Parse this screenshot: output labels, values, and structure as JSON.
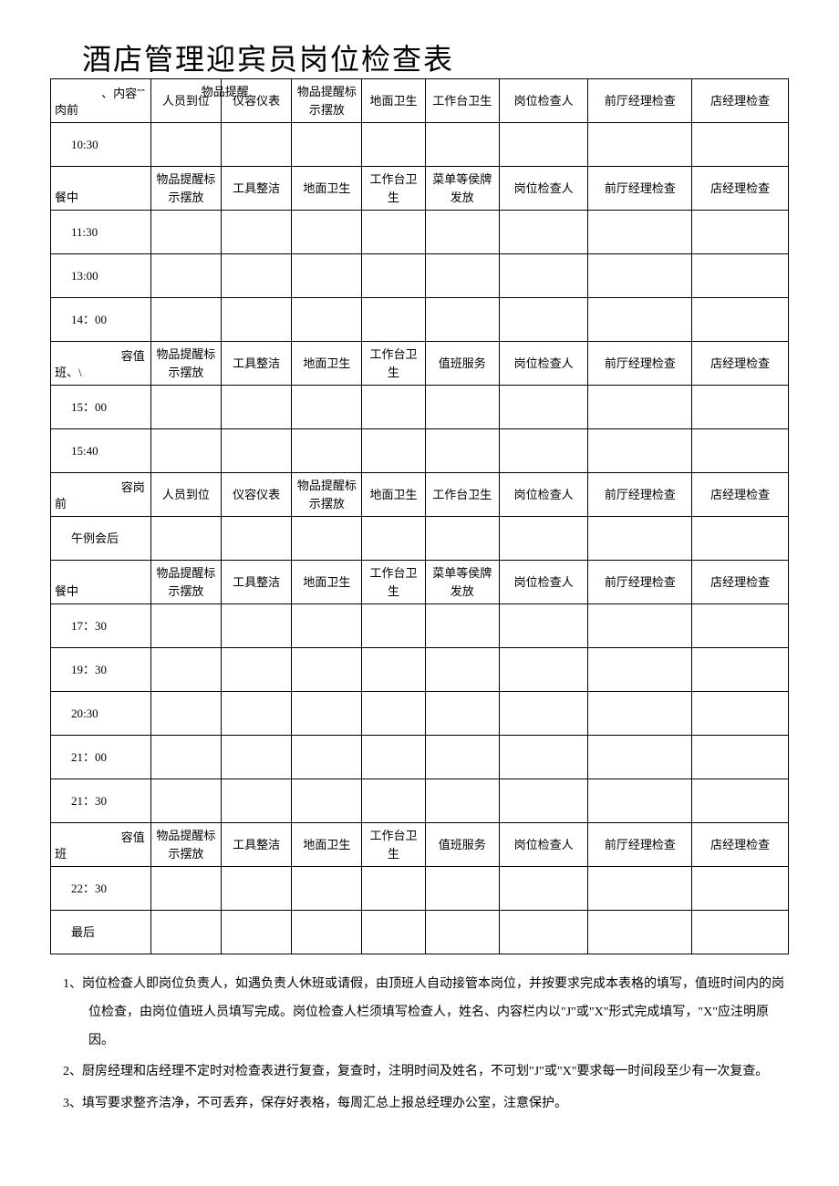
{
  "title": "酒店管理迎宾员岗位检查表",
  "table": {
    "columns": [
      "c1",
      "c2",
      "c3",
      "c4",
      "c5",
      "c6",
      "c7",
      "c8",
      "c9"
    ],
    "rows": [
      {
        "type": "section",
        "cells": [
          {
            "top": "、内容ˆˆ",
            "bottom": "肉前",
            "overlay": "物品提醒"
          },
          "人员到位",
          "仪容仪表",
          "物品提醒标示摆放",
          "地面卫生",
          "工作台卫生",
          "岗位检查人",
          "前厅经理检查",
          "店经理检查"
        ]
      },
      {
        "type": "time",
        "label": "10:30",
        "cells": [
          "",
          "",
          "",
          "",
          "",
          "",
          "",
          ""
        ]
      },
      {
        "type": "section",
        "cells": [
          {
            "top": "",
            "bottom": "餐中"
          },
          "物品提醒标示摆放",
          "工具整洁",
          "地面卫生",
          "工作台卫生",
          "菜单等侯牌发放",
          "岗位检查人",
          "前厅经理检查",
          "店经理检查"
        ]
      },
      {
        "type": "time",
        "label": "11:30",
        "cells": [
          "",
          "",
          "",
          "",
          "",
          "",
          "",
          ""
        ]
      },
      {
        "type": "time",
        "label": "13:00",
        "cells": [
          "",
          "",
          "",
          "",
          "",
          "",
          "",
          ""
        ]
      },
      {
        "type": "time",
        "label": "14：00",
        "cells": [
          "",
          "",
          "",
          "",
          "",
          "",
          "",
          ""
        ]
      },
      {
        "type": "section",
        "cells": [
          {
            "top": "容值",
            "bottom": "班、\\"
          },
          "物品提醒标示摆放",
          "工具整洁",
          "地面卫生",
          "工作台卫生",
          "值班服务",
          "岗位检查人",
          "前厅经理检查",
          "店经理检查"
        ]
      },
      {
        "type": "time",
        "label": "15：00",
        "cells": [
          "",
          "",
          "",
          "",
          "",
          "",
          "",
          ""
        ]
      },
      {
        "type": "time",
        "label": "15:40",
        "cells": [
          "",
          "",
          "",
          "",
          "",
          "",
          "",
          ""
        ]
      },
      {
        "type": "section",
        "cells": [
          {
            "top": "容岗",
            "bottom": "前"
          },
          "人员到位",
          "仪容仪表",
          "物品提醒标示摆放",
          "地面卫生",
          "工作台卫生",
          "岗位检查人",
          "前厅经理检查",
          "店经理检查"
        ]
      },
      {
        "type": "time",
        "label": "午例会后",
        "cells": [
          "",
          "",
          "",
          "",
          "",
          "",
          "",
          ""
        ]
      },
      {
        "type": "section",
        "dashed": true,
        "cells": [
          {
            "top": "",
            "bottom": "餐中"
          },
          "物品提醒标示摆放",
          "工具整洁",
          "地面卫生",
          "工作台卫生",
          "菜单等侯牌发放",
          "岗位检查人",
          "前厅经理检查",
          "店经理检查"
        ]
      },
      {
        "type": "time",
        "label": "17：30",
        "cells": [
          "",
          "",
          "",
          "",
          "",
          "",
          "",
          ""
        ]
      },
      {
        "type": "time",
        "label": "19：30",
        "cells": [
          "",
          "",
          "",
          "",
          "",
          "",
          "",
          ""
        ]
      },
      {
        "type": "time",
        "label": "20:30",
        "cells": [
          "",
          "",
          "",
          "",
          "",
          "",
          "",
          ""
        ]
      },
      {
        "type": "time",
        "label": "21：00",
        "cells": [
          "",
          "",
          "",
          "",
          "",
          "",
          "",
          ""
        ]
      },
      {
        "type": "time",
        "label": "21：30",
        "cells": [
          "",
          "",
          "",
          "",
          "",
          "",
          "",
          ""
        ]
      },
      {
        "type": "section",
        "dashed": true,
        "cells": [
          {
            "top": "容值",
            "bottom": "班"
          },
          "物品提醒标示摆放",
          "工具整洁",
          "地面卫生",
          "工作台卫生",
          "值班服务",
          "岗位检查人",
          "前厅经理检查",
          "店经理检查"
        ]
      },
      {
        "type": "time",
        "label": "22：30",
        "cells": [
          "",
          "",
          "",
          "",
          "",
          "",
          "",
          ""
        ]
      },
      {
        "type": "time",
        "label": "最后",
        "cells": [
          "",
          "",
          "",
          "",
          "",
          "",
          "",
          ""
        ]
      }
    ]
  },
  "notes": [
    "1、岗位检查人即岗位负责人，如遇负责人休班或请假，由顶班人自动接管本岗位，并按要求完成本表格的填写，值班时间内的岗位检查，由岗位值班人员填写完成。岗位检查人栏须填写检查人，姓名、内容栏内以\"J\"或\"X\"形式完成填写，\"X\"应注明原因。",
    "2、厨房经理和店经理不定时对检查表进行复查，复查时，注明时间及姓名，不可划\"J\"或\"X\"要求每一时间段至少有一次复查。",
    "3、填写要求整齐洁净，不可丢弃，保存好表格，每周汇总上报总经理办公室，注意保护。"
  ]
}
